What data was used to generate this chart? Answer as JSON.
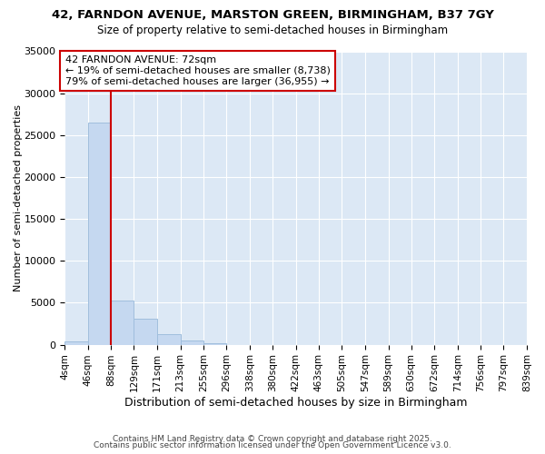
{
  "title": "42, FARNDON AVENUE, MARSTON GREEN, BIRMINGHAM, B37 7GY",
  "subtitle": "Size of property relative to semi-detached houses in Birmingham",
  "xlabel": "Distribution of semi-detached houses by size in Birmingham",
  "ylabel": "Number of semi-detached properties",
  "bar_color": "#c5d8f0",
  "bar_edge_color": "#a0bedd",
  "background_color": "#ffffff",
  "plot_bg_color": "#dce8f5",
  "grid_color": "#ffffff",
  "annotation_text": "42 FARNDON AVENUE: 72sqm\n← 19% of semi-detached houses are smaller (8,738)\n79% of semi-detached houses are larger (36,955) →",
  "annotation_box_color": "#ffffff",
  "annotation_box_edge": "#cc0000",
  "red_line_x": 88,
  "red_line_color": "#cc0000",
  "footnote1": "Contains HM Land Registry data © Crown copyright and database right 2025.",
  "footnote2": "Contains public sector information licensed under the Open Government Licence v3.0.",
  "ylim": [
    0,
    35000
  ],
  "bin_edges": [
    4,
    46,
    88,
    129,
    171,
    213,
    255,
    296,
    338,
    380,
    422,
    463,
    505,
    547,
    589,
    630,
    672,
    714,
    756,
    797,
    839
  ],
  "bar_heights": [
    400,
    26500,
    5300,
    3100,
    1300,
    500,
    200,
    0,
    0,
    0,
    0,
    0,
    0,
    0,
    0,
    0,
    0,
    0,
    0,
    0
  ],
  "yticks": [
    0,
    5000,
    10000,
    15000,
    20000,
    25000,
    30000,
    35000
  ]
}
